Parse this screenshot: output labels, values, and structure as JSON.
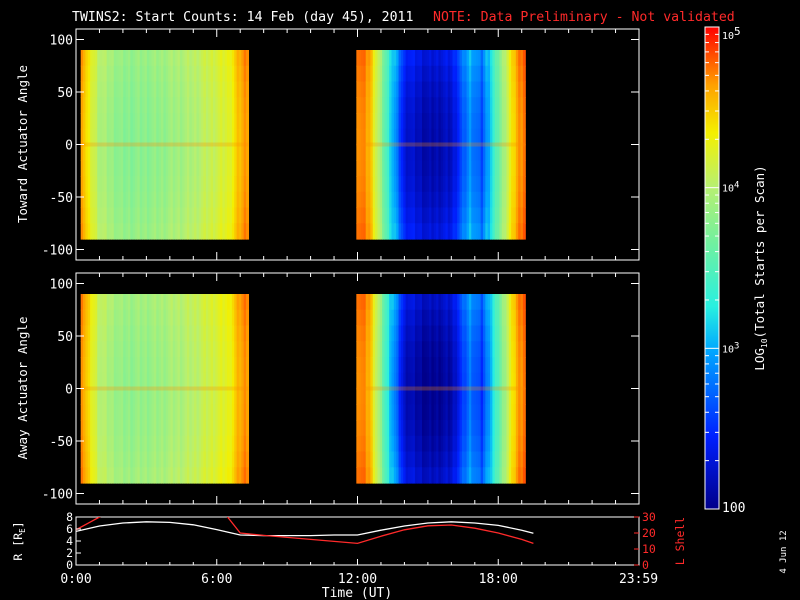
{
  "title": {
    "main": "TWINS2: Start Counts: 14 Feb (day  45), 2011",
    "note": "NOTE: Data Preliminary - Not validated"
  },
  "stamp": "4 Jun 12",
  "colors": {
    "background": "#000000",
    "axis": "#ffffff",
    "note": "#ff2a2a",
    "r_line": "#ffffff",
    "lshell_line": "#ff2a2a"
  },
  "chart_data": [
    {
      "type": "heatmap",
      "panel": "toward",
      "ylabel": "Toward Actuator Angle",
      "ylim": [
        -110,
        110
      ],
      "yticks": [
        "100",
        "50",
        "0",
        "-50",
        "-100"
      ],
      "ytick_values": [
        100,
        50,
        0,
        -50,
        -100
      ],
      "xlim": [
        0,
        24
      ],
      "data_y_range": [
        -90,
        90
      ],
      "segments": [
        {
          "x_start": 0.2,
          "x_end": 7.35,
          "profile_hours": [
            0.2,
            0.5,
            1.0,
            2.0,
            3.5,
            5.0,
            6.5,
            7.0,
            7.35
          ],
          "profile_log10": [
            4.75,
            4.3,
            3.95,
            3.75,
            3.8,
            3.95,
            4.2,
            4.55,
            4.7
          ]
        },
        {
          "x_start": 11.95,
          "x_end": 19.15,
          "profile_hours": [
            11.95,
            12.5,
            13.2,
            14.0,
            15.0,
            16.0,
            16.8,
            17.3,
            18.0,
            18.8,
            19.15
          ],
          "profile_log10": [
            4.75,
            4.6,
            3.5,
            2.3,
            2.1,
            2.2,
            2.9,
            2.6,
            3.6,
            4.6,
            4.8
          ]
        }
      ]
    },
    {
      "type": "heatmap",
      "panel": "away",
      "ylabel": "Away Actuator Angle",
      "ylim": [
        -110,
        110
      ],
      "yticks": [
        "100",
        "50",
        "0",
        "-50",
        "-100"
      ],
      "ytick_values": [
        100,
        50,
        0,
        -50,
        -100
      ],
      "xlim": [
        0,
        24
      ],
      "data_y_range": [
        -90,
        90
      ],
      "segments": [
        {
          "x_start": 0.2,
          "x_end": 7.35,
          "profile_hours": [
            0.2,
            0.5,
            1.0,
            2.0,
            3.5,
            5.0,
            6.5,
            7.0,
            7.35
          ],
          "profile_log10": [
            4.8,
            4.4,
            4.0,
            3.8,
            3.85,
            4.0,
            4.25,
            4.6,
            4.7
          ]
        },
        {
          "x_start": 11.95,
          "x_end": 19.15,
          "profile_hours": [
            11.95,
            12.5,
            13.2,
            14.0,
            15.0,
            16.0,
            16.8,
            17.3,
            18.0,
            18.8,
            19.15
          ],
          "profile_log10": [
            4.75,
            4.6,
            3.4,
            2.2,
            2.0,
            2.1,
            2.8,
            2.5,
            3.5,
            4.6,
            4.8
          ]
        }
      ]
    },
    {
      "type": "line",
      "panel": "orbit",
      "ylabel": "R [R",
      "ylabel_sub": "E",
      "ylabel_end": "]",
      "ylabel_right": "L Shell",
      "xlabel": "Time (UT)",
      "xlim": [
        0,
        24
      ],
      "xticks": [
        "0:00",
        "6:00",
        "12:00",
        "18:00",
        "23:59"
      ],
      "xtick_values": [
        0,
        6,
        12,
        18,
        23.98
      ],
      "ylim_left": [
        0,
        8
      ],
      "yticks_left": [
        "0",
        "2",
        "4",
        "6",
        "8"
      ],
      "ytick_values_left": [
        0,
        2,
        4,
        6,
        8
      ],
      "ylim_right": [
        0,
        30
      ],
      "yticks_right": [
        "0",
        "10",
        "20",
        "30"
      ],
      "ytick_values_right": [
        0,
        10,
        20,
        30
      ],
      "series": [
        {
          "name": "R",
          "axis": "left",
          "x": [
            0,
            1,
            2,
            3,
            4,
            5,
            6,
            7,
            8,
            9,
            10,
            11,
            12,
            13,
            14,
            15,
            16,
            17,
            18,
            19,
            19.5
          ],
          "y": [
            5.6,
            6.5,
            7.0,
            7.2,
            7.1,
            6.7,
            5.9,
            5.0,
            4.9,
            4.9,
            4.9,
            5.0,
            5.0,
            5.8,
            6.5,
            7.0,
            7.2,
            7.0,
            6.6,
            5.8,
            5.3
          ]
        },
        {
          "name": "L Shell",
          "axis": "right",
          "x": [
            0,
            0.5,
            1,
            1.4,
            6.3,
            7.0,
            8,
            10,
            12,
            13,
            14,
            15,
            16,
            17,
            18,
            19,
            19.5
          ],
          "y": [
            22,
            26,
            30,
            33,
            33,
            20,
            18.5,
            16,
            13.5,
            18,
            22,
            24.5,
            25,
            23,
            20,
            16,
            13.5
          ]
        }
      ]
    }
  ],
  "colorbar": {
    "label": "LOG",
    "label_sub": "10",
    "label_rest": "(Total Starts per Scan)",
    "range_log10": [
      2,
      5
    ],
    "tick_values_log10": [
      2,
      3,
      4,
      5
    ],
    "tick_labels": [
      "100",
      "10",
      "10",
      "10"
    ],
    "tick_sups": [
      "",
      "3",
      "4",
      "5"
    ]
  }
}
